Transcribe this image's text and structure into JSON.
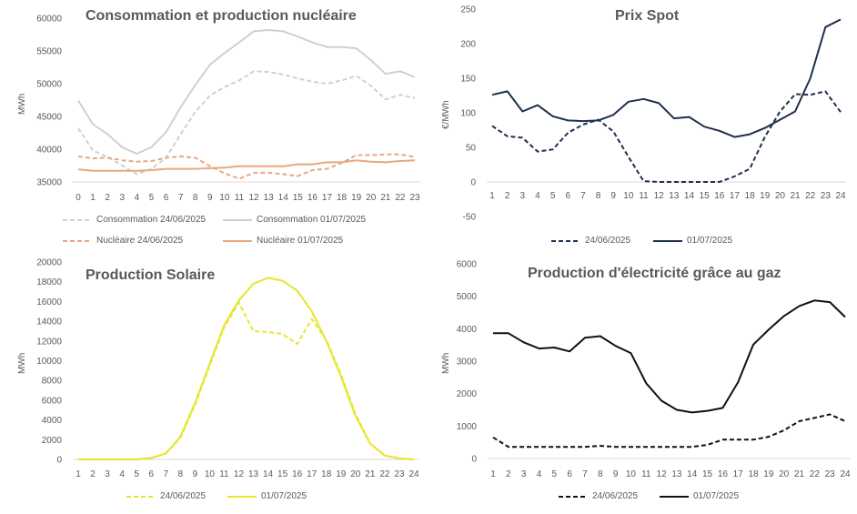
{
  "chart_data": [
    {
      "type": "line",
      "title": "Consommation et production nucléaire",
      "ylabel": "MWh",
      "ylim": [
        35000,
        60000
      ],
      "yticks": [
        35000,
        40000,
        45000,
        50000,
        55000,
        60000
      ],
      "categories": [
        "0",
        "1",
        "2",
        "3",
        "4",
        "5",
        "6",
        "7",
        "8",
        "9",
        "10",
        "11",
        "12",
        "13",
        "14",
        "15",
        "16",
        "17",
        "18",
        "19",
        "20",
        "21",
        "22",
        "23"
      ],
      "grid": false,
      "legend_position": "bottom",
      "series": [
        {
          "name": "Consommation 24/06/2025",
          "color": "#d0d0d0",
          "dash": true,
          "values": [
            43200,
            39800,
            38800,
            37500,
            36200,
            37000,
            38700,
            42300,
            45700,
            48200,
            49500,
            50500,
            51900,
            51800,
            51400,
            50800,
            50300,
            50000,
            50500,
            51200,
            49700,
            47600,
            48300,
            47800
          ]
        },
        {
          "name": "Consommation 01/07/2025",
          "color": "#d0d0d0",
          "dash": false,
          "values": [
            47400,
            43800,
            42300,
            40300,
            39300,
            40300,
            42600,
            46400,
            49800,
            52900,
            54700,
            56300,
            58000,
            58200,
            58000,
            57200,
            56300,
            55600,
            55600,
            55400,
            53600,
            51500,
            51900,
            51000
          ]
        },
        {
          "name": "Nucléaire 24/06/2025",
          "color": "#e8a87f",
          "dash": true,
          "values": [
            38900,
            38600,
            38700,
            38300,
            38100,
            38200,
            38700,
            38900,
            38700,
            37400,
            36300,
            35500,
            36400,
            36400,
            36200,
            35900,
            36800,
            37000,
            37900,
            39100,
            39100,
            39200,
            39200,
            38800
          ]
        },
        {
          "name": "Nucléaire 01/07/2025",
          "color": "#e8a87f",
          "dash": false,
          "values": [
            36900,
            36700,
            36700,
            36700,
            36700,
            36800,
            37000,
            37000,
            37000,
            37100,
            37200,
            37400,
            37400,
            37400,
            37400,
            37700,
            37700,
            38000,
            38000,
            38300,
            38100,
            38000,
            38200,
            38300
          ]
        }
      ]
    },
    {
      "type": "line",
      "title": "Prix Spot",
      "ylabel": "€/MWh",
      "ylim": [
        -50,
        250
      ],
      "yticks": [
        -50,
        0,
        50,
        100,
        150,
        200,
        250
      ],
      "categories": [
        "1",
        "2",
        "3",
        "4",
        "5",
        "6",
        "7",
        "8",
        "9",
        "10",
        "11",
        "12",
        "13",
        "14",
        "15",
        "16",
        "17",
        "18",
        "19",
        "20",
        "21",
        "22",
        "23",
        "24"
      ],
      "grid": false,
      "legend_position": "bottom",
      "series": [
        {
          "name": "24/06/2025",
          "color": "#1f2f4f",
          "dash": true,
          "values": [
            81,
            66,
            64,
            44,
            47,
            71,
            83,
            90,
            73,
            36,
            1,
            0,
            0,
            0,
            0,
            0,
            8,
            19,
            65,
            102,
            127,
            126,
            131,
            101
          ]
        },
        {
          "name": "01/07/2025",
          "color": "#1f2f4f",
          "dash": false,
          "values": [
            126,
            131,
            102,
            111,
            95,
            89,
            88,
            89,
            97,
            116,
            120,
            114,
            92,
            94,
            80,
            74,
            65,
            69,
            78,
            90,
            102,
            150,
            224,
            235
          ]
        }
      ]
    },
    {
      "type": "line",
      "title": "Production Solaire",
      "ylabel": "MWh",
      "ylim": [
        0,
        20000
      ],
      "yticks": [
        0,
        2000,
        4000,
        6000,
        8000,
        10000,
        12000,
        14000,
        16000,
        18000,
        20000
      ],
      "categories": [
        "1",
        "2",
        "3",
        "4",
        "5",
        "6",
        "7",
        "8",
        "9",
        "10",
        "11",
        "12",
        "13",
        "14",
        "15",
        "16",
        "17",
        "18",
        "19",
        "20",
        "21",
        "22",
        "23",
        "24"
      ],
      "grid": false,
      "legend_position": "bottom",
      "series": [
        {
          "name": "24/06/2025",
          "color": "#e6e62a",
          "dash": true,
          "values": [
            0,
            0,
            0,
            0,
            0,
            150,
            600,
            2200,
            5500,
            9500,
            13400,
            15900,
            13000,
            12900,
            12700,
            11700,
            14200,
            12100,
            8600,
            4600,
            1600,
            400,
            100,
            0
          ]
        },
        {
          "name": "01/07/2025",
          "color": "#e6e62a",
          "dash": false,
          "values": [
            0,
            0,
            0,
            0,
            0,
            150,
            600,
            2300,
            5700,
            9700,
            13600,
            16100,
            17800,
            18400,
            18100,
            17100,
            15000,
            12000,
            8400,
            4400,
            1600,
            400,
            100,
            0
          ]
        }
      ]
    },
    {
      "type": "line",
      "title": "Production d'électricité grâce au gaz",
      "ylabel": "MWh",
      "ylim": [
        0,
        6000
      ],
      "yticks": [
        0,
        1000,
        2000,
        3000,
        4000,
        5000,
        6000
      ],
      "categories": [
        "1",
        "2",
        "3",
        "4",
        "5",
        "6",
        "7",
        "8",
        "9",
        "10",
        "11",
        "12",
        "13",
        "14",
        "15",
        "16",
        "17",
        "18",
        "19",
        "20",
        "21",
        "22",
        "23",
        "24"
      ],
      "grid": false,
      "legend_position": "bottom",
      "series": [
        {
          "name": "24/06/2025",
          "color": "#111111",
          "dash": true,
          "values": [
            650,
            360,
            360,
            360,
            360,
            360,
            360,
            390,
            360,
            360,
            360,
            360,
            360,
            360,
            420,
            580,
            580,
            580,
            670,
            870,
            1150,
            1250,
            1360,
            1150
          ]
        },
        {
          "name": "01/07/2025",
          "color": "#111111",
          "dash": false,
          "values": [
            3860,
            3860,
            3580,
            3390,
            3420,
            3300,
            3720,
            3770,
            3470,
            3250,
            2320,
            1780,
            1500,
            1420,
            1470,
            1560,
            2350,
            3510,
            3970,
            4390,
            4700,
            4870,
            4820,
            4360
          ]
        }
      ]
    }
  ]
}
